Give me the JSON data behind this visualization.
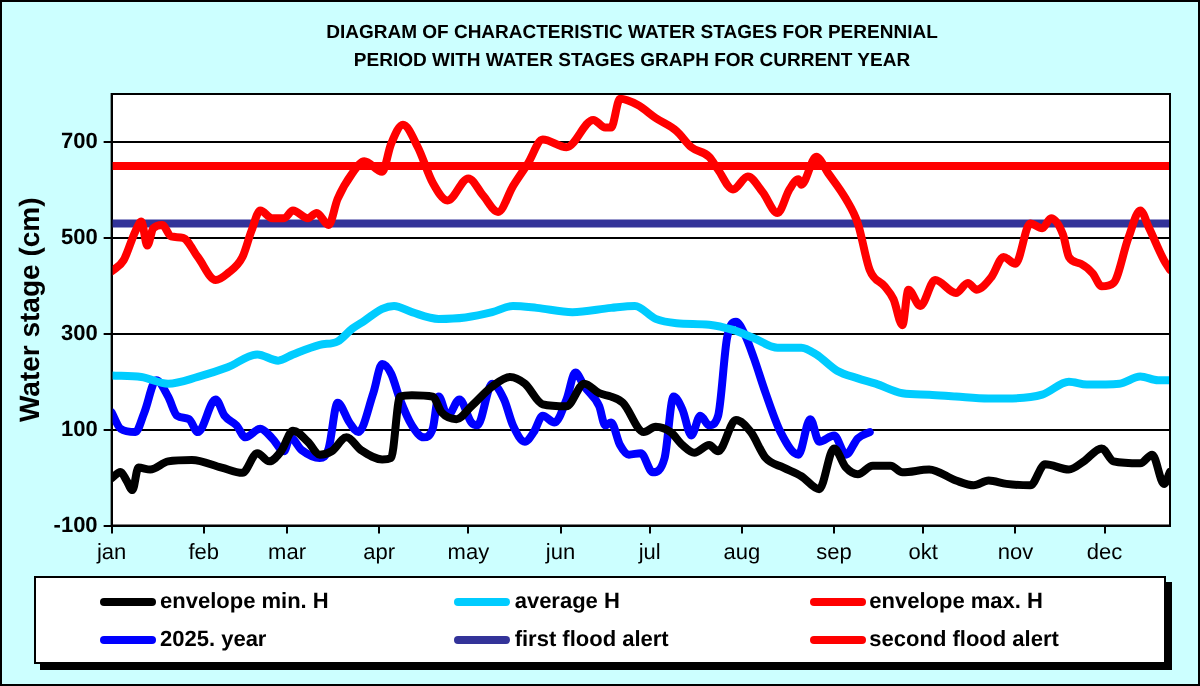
{
  "chart_data": {
    "type": "line",
    "title": "DIAGRAM OF CHARACTERISTIC WATER STAGES FOR PERENNIAL  PERIOD WITH WATER STAGES GRAPH FOR CURRENT  YEAR",
    "ylabel": "Water stage (cm)",
    "xlim": [
      "--01-01",
      "--12-23"
    ],
    "xticks": [
      {
        "value": "--01-01",
        "label": "jan"
      },
      {
        "value": "--02-01",
        "label": "feb"
      },
      {
        "value": "--03-01",
        "label": "mar"
      },
      {
        "value": "--04-01",
        "label": "apr"
      },
      {
        "value": "--05-01",
        "label": "may"
      },
      {
        "value": "--06-01",
        "label": "jun"
      },
      {
        "value": "--07-01",
        "label": "jul"
      },
      {
        "value": "--08-01",
        "label": "aug"
      },
      {
        "value": "--09-01",
        "label": "sep"
      },
      {
        "value": "--10-01",
        "label": "okt"
      },
      {
        "value": "--11-01",
        "label": "nov"
      },
      {
        "value": "--12-01",
        "label": "dec"
      }
    ],
    "ylim": [
      -100,
      800
    ],
    "yticks": [
      -100,
      100,
      300,
      500,
      700
    ],
    "grid": "y",
    "legend": "bottom",
    "marker": "none",
    "line_style": "solid",
    "series": [
      {
        "name": "envelope min. H",
        "color": "#000000",
        "x": [
          "--01-01",
          "--01-04",
          "--01-06",
          "--01-08",
          "--01-10",
          "--01-14",
          "--01-20",
          "--01-28",
          "--02-07",
          "--02-14",
          "--02-19",
          "--02-23",
          "--02-27",
          "--03-03",
          "--03-08",
          "--03-12",
          "--03-16",
          "--03-21",
          "--03-26",
          "--04-02",
          "--04-05",
          "--04-08",
          "--04-12",
          "--04-19",
          "--04-22",
          "--04-27",
          "--05-02",
          "--05-09",
          "--05-15",
          "--05-20",
          "--05-26",
          "--06-03",
          "--06-09",
          "--06-14",
          "--06-18",
          "--06-22",
          "--06-29",
          "--07-03",
          "--07-08",
          "--07-12",
          "--07-16",
          "--07-21",
          "--07-24",
          "--07-30",
          "--08-04",
          "--08-09",
          "--08-15",
          "--08-21",
          "--08-27",
          "--09-01",
          "--09-05",
          "--09-09",
          "--09-14",
          "--09-20",
          "--09-24",
          "--10-03",
          "--10-12",
          "--10-18",
          "--10-23",
          "--10-29",
          "--11-06",
          "--11-11",
          "--11-19",
          "--11-24",
          "--11-30",
          "--12-04",
          "--12-13",
          "--12-17",
          "--12-21",
          "--12-23"
        ],
        "values": [
          -1,
          12,
          -6,
          -26,
          21,
          17,
          34,
          37,
          21,
          10,
          51,
          34,
          55,
          98,
          75,
          48,
          55,
          84,
          57,
          38,
          41,
          169,
          172,
          169,
          136,
          122,
          149,
          190,
          210,
          196,
          153,
          149,
          196,
          176,
          169,
          156,
          95,
          106,
          95,
          68,
          52,
          68,
          55,
          120,
          95,
          41,
          21,
          3,
          -24,
          61,
          21,
          7,
          25,
          25,
          11,
          17,
          -6,
          -16,
          -6,
          -13,
          -16,
          28,
          17,
          34,
          61,
          34,
          30,
          48,
          -13,
          12
        ]
      },
      {
        "name": "average H",
        "color": "#00ccff",
        "x": [
          "--01-01",
          "--01-11",
          "--01-20",
          "--01-30",
          "--02-09",
          "--02-19",
          "--02-26",
          "--03-03",
          "--03-12",
          "--03-18",
          "--03-23",
          "--03-27",
          "--04-02",
          "--04-06",
          "--04-12",
          "--04-21",
          "--04-30",
          "--05-09",
          "--05-16",
          "--05-24",
          "--06-05",
          "--06-18",
          "--06-26",
          "--07-03",
          "--07-10",
          "--07-21",
          "--07-29",
          "--08-05",
          "--08-13",
          "--08-21",
          "--08-26",
          "--09-02",
          "--09-09",
          "--09-15",
          "--09-24",
          "--10-03",
          "--10-12",
          "--10-23",
          "--10-29",
          "--11-10",
          "--11-19",
          "--11-25",
          "--12-06",
          "--12-13",
          "--12-19",
          "--12-23"
        ],
        "values": [
          213,
          210,
          196,
          210,
          230,
          257,
          244,
          257,
          277,
          284,
          311,
          327,
          352,
          358,
          345,
          331,
          334,
          345,
          358,
          354,
          345,
          354,
          358,
          331,
          322,
          319,
          308,
          291,
          271,
          271,
          257,
          223,
          207,
          196,
          176,
          173,
          169,
          165,
          165,
          173,
          200,
          194,
          196,
          211,
          203,
          203
        ]
      },
      {
        "name": "envelope max. H",
        "color": "#ff0000",
        "x": [
          "--01-01",
          "--01-05",
          "--01-09",
          "--01-11",
          "--01-13",
          "--01-15",
          "--01-18",
          "--01-21",
          "--01-25",
          "--01-30",
          "--02-05",
          "--02-09",
          "--02-14",
          "--02-17",
          "--02-20",
          "--02-24",
          "--02-28",
          "--03-03",
          "--03-08",
          "--03-11",
          "--03-15",
          "--03-18",
          "--03-23",
          "--03-27",
          "--04-02",
          "--04-05",
          "--04-09",
          "--04-14",
          "--04-19",
          "--04-24",
          "--05-01",
          "--05-06",
          "--05-11",
          "--05-16",
          "--05-21",
          "--05-26",
          "--06-03",
          "--06-12",
          "--06-16",
          "--06-18",
          "--06-21",
          "--06-27",
          "--07-03",
          "--07-10",
          "--07-15",
          "--07-21",
          "--07-24",
          "--07-29",
          "--08-03",
          "--08-08",
          "--08-13",
          "--08-17",
          "--08-20",
          "--08-21",
          "--08-26",
          "--08-30",
          "--09-05",
          "--09-09",
          "--09-13",
          "--09-18",
          "--09-21",
          "--09-24",
          "--09-26",
          "--09-30",
          "--10-05",
          "--10-12",
          "--10-16",
          "--10-19",
          "--10-24",
          "--10-28",
          "--11-01",
          "--11-06",
          "--11-10",
          "--11-13",
          "--11-17",
          "--11-19",
          "--11-23",
          "--11-27",
          "--11-30",
          "--12-04",
          "--12-09",
          "--12-13",
          "--12-16",
          "--12-21",
          "--12-23"
        ],
        "values": [
          430,
          453,
          514,
          534,
          484,
          520,
          527,
          503,
          500,
          460,
          412,
          426,
          460,
          514,
          557,
          541,
          541,
          557,
          541,
          552,
          527,
          581,
          635,
          660,
          638,
          696,
          736,
          689,
          615,
          578,
          624,
          588,
          554,
          608,
          655,
          705,
          689,
          746,
          730,
          730,
          790,
          777,
          750,
          723,
          689,
          669,
          642,
          601,
          628,
          595,
          552,
          601,
          622,
          611,
          669,
          635,
          581,
          530,
          433,
          399,
          372,
          318,
          392,
          358,
          412,
          385,
          406,
          392,
          419,
          460,
          446,
          530,
          520,
          541,
          507,
          460,
          446,
          426,
          399,
          406,
          500,
          557,
          520,
          453,
          433
        ]
      },
      {
        "name": "2025. year",
        "color": "#0000ff",
        "x": [
          "--01-01",
          "--01-04",
          "--01-09",
          "--01-12",
          "--01-16",
          "--01-20",
          "--01-23",
          "--01-27",
          "--01-30",
          "--02-05",
          "--02-08",
          "--02-12",
          "--02-15",
          "--02-20",
          "--02-24",
          "--02-28",
          "--03-02",
          "--03-06",
          "--03-12",
          "--03-15",
          "--03-18",
          "--03-22",
          "--03-25",
          "--03-30",
          "--04-02",
          "--04-05",
          "--04-08",
          "--04-12",
          "--04-16",
          "--04-19",
          "--04-21",
          "--04-24",
          "--04-28",
          "--05-02",
          "--05-04",
          "--05-09",
          "--05-13",
          "--05-16",
          "--05-20",
          "--05-23",
          "--05-26",
          "--05-30",
          "--06-03",
          "--06-06",
          "--06-09",
          "--06-14",
          "--06-16",
          "--06-18",
          "--06-21",
          "--06-24",
          "--06-28",
          "--07-02",
          "--07-06",
          "--07-09",
          "--07-12",
          "--07-15",
          "--07-18",
          "--07-21",
          "--07-24",
          "--07-27",
          "--07-30",
          "--08-02",
          "--08-05",
          "--08-09",
          "--08-14",
          "--08-20",
          "--08-24",
          "--08-27",
          "--09-01",
          "--09-05",
          "--09-09",
          "--09-13"
        ],
        "values": [
          136,
          102,
          95,
          136,
          203,
          169,
          129,
          122,
          95,
          163,
          129,
          109,
          84,
          102,
          82,
          55,
          84,
          57,
          41,
          61,
          156,
          115,
          95,
          176,
          237,
          217,
          163,
          109,
          84,
          102,
          169,
          129,
          163,
          115,
          109,
          196,
          163,
          109,
          75,
          95,
          129,
          115,
          163,
          219,
          190,
          149,
          109,
          115,
          68,
          48,
          51,
          11,
          41,
          169,
          142,
          88,
          129,
          109,
          129,
          291,
          325,
          298,
          250,
          176,
          95,
          48,
          122,
          75,
          88,
          48,
          82,
          95
        ]
      }
    ],
    "ref_lines": [
      {
        "axis": "y",
        "value": 530,
        "label": "first flood alert",
        "color": "#333399"
      },
      {
        "axis": "y",
        "value": 650,
        "label": "second flood alert",
        "color": "#ff0000"
      }
    ]
  }
}
